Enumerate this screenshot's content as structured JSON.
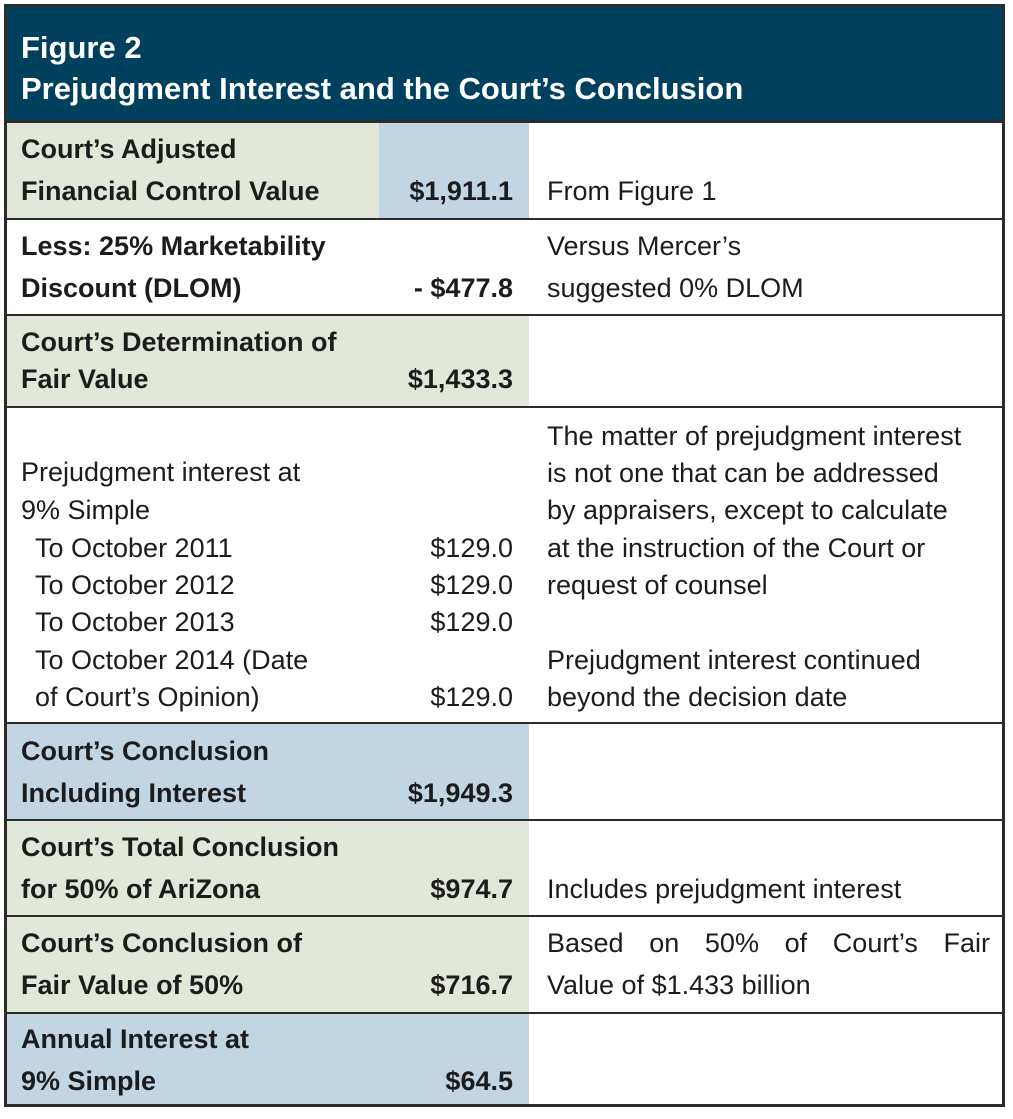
{
  "figure": {
    "number": "Figure 2",
    "title": "Prejudgment Interest and the Court’s Conclusion"
  },
  "rows": {
    "adjusted": {
      "label_line1": "Court’s Adjusted",
      "label_line2": "Financial Control Value",
      "value": "$1,911.1",
      "note": "From Figure 1"
    },
    "dlom": {
      "label_line1": "Less: 25% Marketability",
      "label_line2": "Discount (DLOM)",
      "value": "- $477.8",
      "note_line1": "Versus Mercer’s",
      "note_line2": "suggested 0% DLOM"
    },
    "fair_value": {
      "label_line1": "Court’s Determination of",
      "label_line2": "Fair Value",
      "value": "$1,433.3"
    },
    "interest": {
      "label_line1": "Prejudgment interest at",
      "label_line2": "9% Simple",
      "items": [
        {
          "label": "To October 2011",
          "value": "$129.0"
        },
        {
          "label": "To October 2012",
          "value": "$129.0"
        },
        {
          "label": "To October 2013",
          "value": "$129.0"
        },
        {
          "label_line1": "To October 2014 (Date",
          "label_line2": "of Court’s Opinion)",
          "value": "$129.0"
        }
      ],
      "note_lines": [
        "The matter of prejudgment interest",
        "is not one that can be addressed",
        "by appraisers, except to calculate",
        "at the instruction of the Court or",
        "request of counsel"
      ],
      "note2_line1": "Prejudgment interest continued",
      "note2_line2": "beyond the decision date"
    },
    "conclusion": {
      "label_line1": "Court’s Conclusion",
      "label_line2": "Including Interest",
      "value": "$1,949.3"
    },
    "total": {
      "label_line1": "Court’s Total Conclusion",
      "label_line2": "for 50% of AriZona",
      "value": "$974.7",
      "note": "Includes prejudgment interest"
    },
    "fair_value_50": {
      "label_line1": "Court’s Conclusion of",
      "label_line2": "Fair Value of 50%",
      "value": "$716.7",
      "note_line1": "Based on 50% of Court’s Fair",
      "note_line2": "Value of $1.433 billion"
    },
    "annual": {
      "label_line1": "Annual Interest at",
      "label_line2": "9% Simple",
      "value": "$64.5"
    }
  },
  "colors": {
    "header_bg": "#00405f",
    "green_cell": "#e1e8d9",
    "blue_cell": "#c2d5e3",
    "border": "#2b2b2b"
  }
}
